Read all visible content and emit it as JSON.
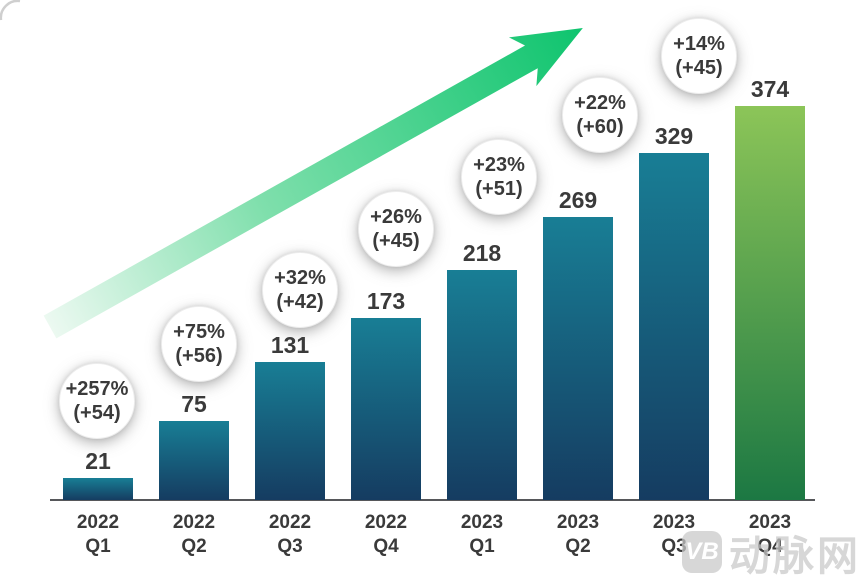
{
  "chart_data": {
    "type": "bar",
    "categories": [
      "2022 Q1",
      "2022 Q2",
      "2022 Q3",
      "2022 Q4",
      "2023 Q1",
      "2023 Q2",
      "2023 Q3",
      "2023 Q4"
    ],
    "values": [
      21,
      75,
      131,
      173,
      218,
      269,
      329,
      374
    ],
    "data_labels": [
      "21",
      "75",
      "131",
      "173",
      "218",
      "269",
      "329",
      "374"
    ],
    "annotations": [
      {
        "percent": "+257%",
        "delta": "(+54)"
      },
      {
        "percent": "+75%",
        "delta": "(+56)"
      },
      {
        "percent": "+32%",
        "delta": "(+42)"
      },
      {
        "percent": "+26%",
        "delta": "(+45)"
      },
      {
        "percent": "+23%",
        "delta": "(+51)"
      },
      {
        "percent": "+22%",
        "delta": "(+60)"
      },
      {
        "percent": "+14%",
        "delta": "(+45)"
      }
    ],
    "title": "",
    "xlabel": "",
    "ylabel": "",
    "ylim": [
      0,
      400
    ],
    "grid": false,
    "legend": false,
    "highlight_last_bar": true,
    "colors": {
      "bar_top": "#187E95",
      "bar_bottom": "#153C61",
      "highlight_bar_top": "#8CC558",
      "highlight_bar_bottom": "#1C7843",
      "arrow_tail": "#ECF9F1",
      "arrow_mid": "#7FDFAC",
      "arrow_head": "#0EC46E",
      "text": "#3A3A3A",
      "axis": "#56575A"
    }
  },
  "watermark": {
    "logo": "VB",
    "text": "动脉网"
  }
}
